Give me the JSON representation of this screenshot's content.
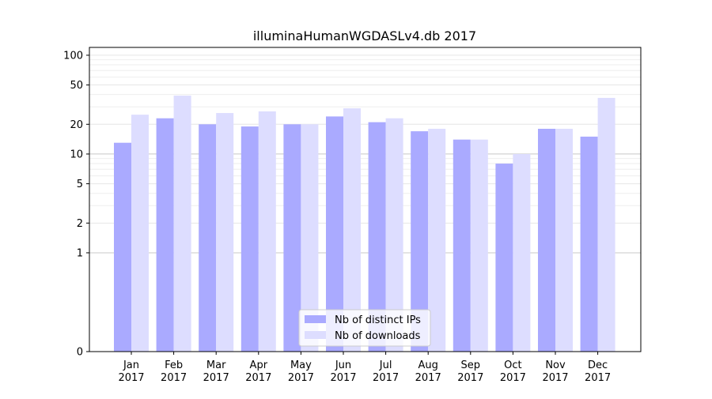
{
  "chart_data": {
    "type": "bar",
    "title": "illuminaHumanWGDASLv4.db 2017",
    "xlabel": "",
    "ylabel": "",
    "y_scale": "symlog",
    "ylim": [
      0,
      120
    ],
    "y_ticks": [
      0,
      1,
      2,
      5,
      10,
      20,
      50,
      100
    ],
    "y_tick_labels": [
      "0",
      "1",
      "2",
      "5",
      "10",
      "20",
      "50",
      "100"
    ],
    "categories": [
      "Jan\n2017",
      "Feb\n2017",
      "Mar\n2017",
      "Apr\n2017",
      "May\n2017",
      "Jun\n2017",
      "Jul\n2017",
      "Aug\n2017",
      "Sep\n2017",
      "Oct\n2017",
      "Nov\n2017",
      "Dec\n2017"
    ],
    "series": [
      {
        "name": "Nb of distinct IPs",
        "color": "#aaaaff",
        "values": [
          13,
          23,
          20,
          19,
          20,
          24,
          21,
          17,
          14,
          8,
          18,
          15
        ]
      },
      {
        "name": "Nb of downloads",
        "color": "#ddddff",
        "values": [
          25,
          39,
          26,
          27,
          20,
          29,
          23,
          18,
          14,
          10,
          18,
          37
        ]
      }
    ],
    "legend_position": "lower center",
    "grid": true
  }
}
